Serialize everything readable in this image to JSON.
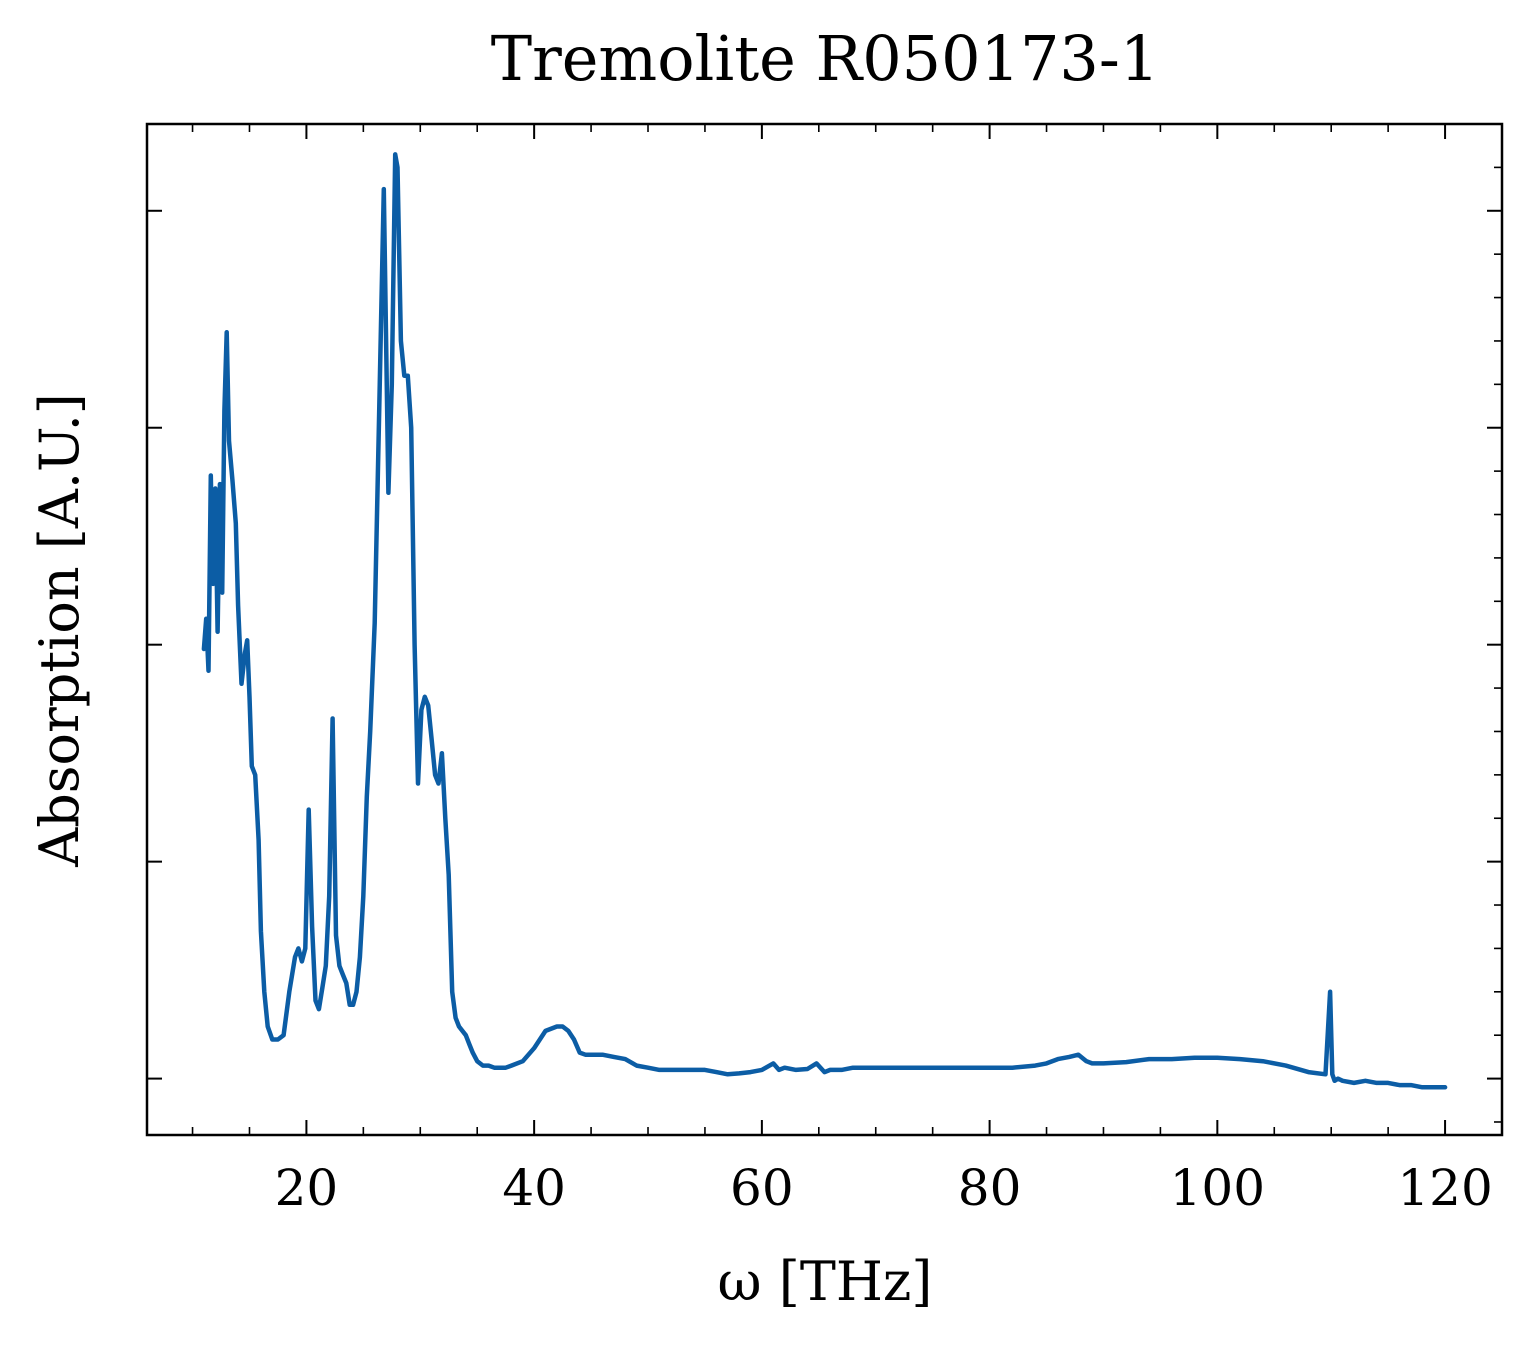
{
  "chart_data": {
    "type": "line",
    "title": "Tremolite R050173-1",
    "xlabel": "ω [THz]",
    "ylabel": "Absorption [A.U.]",
    "xlim": [
      6,
      125
    ],
    "ylim": [
      -0.13,
      2.2
    ],
    "x_ticks": [
      20,
      40,
      60,
      80,
      100,
      120
    ],
    "x_tick_labels": [
      "20",
      "40",
      "60",
      "80",
      "100",
      "120"
    ],
    "y_ticks": [
      0,
      0.5,
      1.0,
      1.5,
      2.0
    ],
    "y_tick_labels_visible": false,
    "grid": false,
    "legend": null,
    "series": [
      {
        "color": "#0c5da5",
        "x": [
          11.0,
          11.2,
          11.4,
          11.6,
          11.8,
          12.0,
          12.2,
          12.4,
          12.6,
          12.8,
          13.0,
          13.2,
          13.5,
          13.8,
          14.0,
          14.3,
          14.6,
          14.8,
          15.0,
          15.2,
          15.5,
          15.8,
          16.0,
          16.3,
          16.6,
          17.0,
          17.5,
          18.0,
          18.5,
          19.0,
          19.3,
          19.6,
          19.9,
          20.2,
          20.5,
          20.8,
          21.1,
          21.4,
          21.7,
          22.0,
          22.3,
          22.6,
          22.9,
          23.2,
          23.5,
          23.8,
          24.1,
          24.4,
          24.7,
          25.0,
          25.3,
          25.6,
          26.0,
          26.4,
          26.8,
          27.2,
          27.5,
          27.8,
          28.0,
          28.3,
          28.6,
          28.9,
          29.2,
          29.5,
          29.8,
          30.1,
          30.4,
          30.7,
          31.0,
          31.3,
          31.6,
          31.9,
          32.2,
          32.5,
          32.8,
          33.1,
          33.4,
          33.7,
          34.0,
          34.3,
          34.6,
          35.0,
          35.5,
          36.0,
          36.5,
          37.0,
          37.5,
          38.0,
          39.0,
          40.0,
          41.0,
          42.0,
          42.5,
          43.0,
          43.5,
          44.0,
          44.5,
          45.0,
          45.5,
          46.0,
          47.0,
          48.0,
          49.0,
          50.0,
          51.0,
          52.0,
          53.0,
          54.0,
          55.0,
          56.0,
          57.0,
          58.0,
          59.0,
          60.0,
          61.0,
          61.5,
          62.0,
          63.0,
          64.0,
          64.8,
          65.5,
          66.0,
          67.0,
          68.0,
          70.0,
          72.0,
          74.0,
          76.0,
          78.0,
          80.0,
          82.0,
          84.0,
          85.0,
          86.0,
          87.0,
          87.8,
          88.5,
          89.0,
          90.0,
          92.0,
          94.0,
          96.0,
          98.0,
          100.0,
          102.0,
          104.0,
          106.0,
          108.0,
          109.5,
          109.9,
          110.1,
          110.3,
          110.6,
          111.0,
          112.0,
          113.0,
          114.0,
          115.0,
          116.0,
          117.0,
          118.0,
          119.0,
          120.0
        ],
        "values": [
          0.99,
          1.06,
          0.94,
          1.39,
          1.14,
          1.36,
          1.03,
          1.37,
          1.12,
          1.54,
          1.72,
          1.47,
          1.38,
          1.28,
          1.09,
          0.91,
          0.98,
          1.01,
          0.88,
          0.72,
          0.7,
          0.55,
          0.34,
          0.2,
          0.12,
          0.09,
          0.09,
          0.1,
          0.2,
          0.28,
          0.3,
          0.27,
          0.3,
          0.62,
          0.35,
          0.18,
          0.16,
          0.21,
          0.26,
          0.42,
          0.83,
          0.33,
          0.26,
          0.24,
          0.22,
          0.17,
          0.17,
          0.2,
          0.28,
          0.42,
          0.65,
          0.8,
          1.05,
          1.55,
          2.05,
          1.35,
          1.6,
          2.13,
          2.1,
          1.7,
          1.62,
          1.62,
          1.5,
          1.0,
          0.68,
          0.85,
          0.88,
          0.86,
          0.78,
          0.7,
          0.68,
          0.75,
          0.6,
          0.47,
          0.2,
          0.14,
          0.12,
          0.11,
          0.1,
          0.08,
          0.06,
          0.04,
          0.03,
          0.03,
          0.025,
          0.025,
          0.025,
          0.03,
          0.04,
          0.07,
          0.11,
          0.12,
          0.12,
          0.11,
          0.09,
          0.06,
          0.055,
          0.055,
          0.055,
          0.055,
          0.05,
          0.045,
          0.03,
          0.025,
          0.02,
          0.02,
          0.02,
          0.02,
          0.02,
          0.015,
          0.01,
          0.012,
          0.015,
          0.02,
          0.035,
          0.02,
          0.025,
          0.02,
          0.022,
          0.035,
          0.015,
          0.02,
          0.02,
          0.025,
          0.025,
          0.025,
          0.025,
          0.025,
          0.025,
          0.025,
          0.025,
          0.03,
          0.035,
          0.045,
          0.05,
          0.055,
          0.04,
          0.035,
          0.035,
          0.038,
          0.045,
          0.045,
          0.048,
          0.048,
          0.045,
          0.04,
          0.03,
          0.015,
          0.01,
          0.2,
          0.01,
          -0.005,
          0.0,
          -0.005,
          -0.01,
          -0.005,
          -0.01,
          -0.01,
          -0.015,
          -0.015,
          -0.02,
          -0.02,
          -0.02
        ]
      }
    ]
  }
}
